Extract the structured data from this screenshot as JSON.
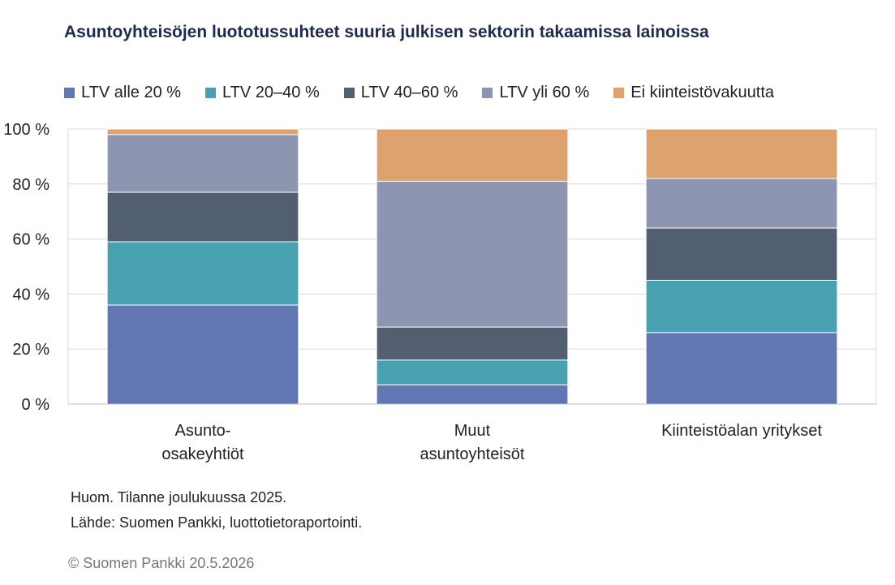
{
  "title": "Asuntoyhteisöjen luototussuhteet suuria julkisen sektorin takaamissa lainoissa",
  "chart_data": {
    "type": "bar",
    "stacked": true,
    "title": "Asuntoyhteisöjen luototussuhteet suuria julkisen sektorin takaamissa lainoissa",
    "categories": [
      [
        "Asunto-",
        "osakeyhtiöt"
      ],
      [
        "Muut",
        "asuntoyhteisöt"
      ],
      [
        "Kiinteistöalan yritykset"
      ]
    ],
    "series": [
      {
        "name": "LTV alle 20 %",
        "color": "#6176b3",
        "values": [
          36,
          7,
          26
        ]
      },
      {
        "name": "LTV 20–40 %",
        "color": "#48a1b0",
        "values": [
          23,
          9,
          19
        ]
      },
      {
        "name": "LTV 40–60 %",
        "color": "#525f70",
        "values": [
          18,
          12,
          19
        ]
      },
      {
        "name": "LTV yli 60 %",
        "color": "#8e95b0",
        "values": [
          21,
          53,
          18
        ]
      },
      {
        "name": "Ei kiinteistövakuutta",
        "color": "#dea26e",
        "values": [
          2,
          19,
          18
        ]
      }
    ],
    "yticks": [
      "0 %",
      "20 %",
      "40 %",
      "60 %",
      "80 %",
      "100 %"
    ],
    "ylim": [
      0,
      100
    ],
    "grid": true,
    "legend_position": "top"
  },
  "notes": {
    "line1": "Huom. Tilanne joulukuussa 2025.",
    "line2": "Lähde: Suomen Pankki, luottotietoraportointi."
  },
  "copyright": "© Suomen Pankki 20.5.2026"
}
